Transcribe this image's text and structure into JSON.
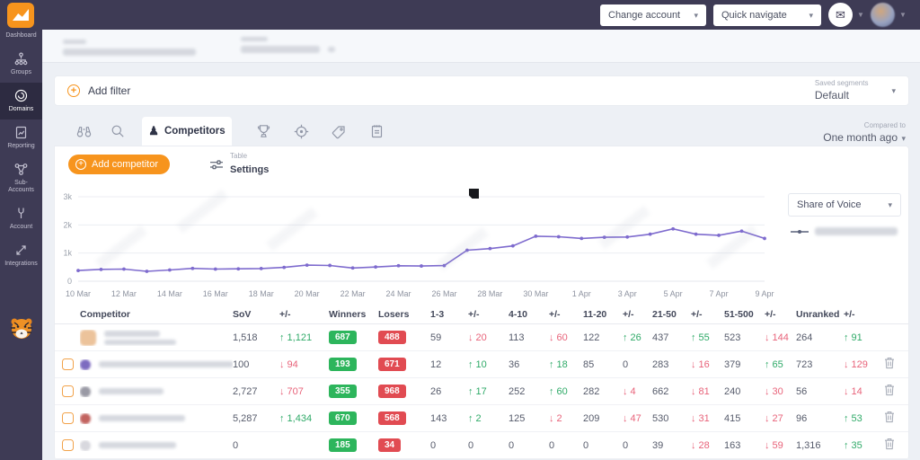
{
  "colors": {
    "topbar": "#3e3b55",
    "accent": "#f7941d",
    "chart_line": "#7e6bce",
    "up_green": "#2faa68",
    "down_red": "#e8637a",
    "badge_green": "#2db55c",
    "badge_red": "#e14b52"
  },
  "topbar": {
    "change_account": "Change account",
    "quick_navigate": "Quick navigate"
  },
  "sidebar": {
    "items": [
      {
        "label": "Dashboard"
      },
      {
        "label": "Groups"
      },
      {
        "label": "Domains"
      },
      {
        "label": "Reporting"
      },
      {
        "label": "Sub-Accounts"
      },
      {
        "label": "Account"
      },
      {
        "label": "Integrations"
      }
    ]
  },
  "filter_bar": {
    "add_filter": "Add filter",
    "saved_segments_label": "Saved segments",
    "saved_segments_value": "Default"
  },
  "tabs": {
    "competitors_label": "Competitors",
    "compared_to_label": "Compared to",
    "compared_to_value": "One month ago"
  },
  "toolbar": {
    "add_competitor_label": "Add competitor",
    "table_settings_top": "Table",
    "table_settings_label": "Settings"
  },
  "chart": {
    "metric_selector": "Share of Voice"
  },
  "chart_data": {
    "type": "line",
    "x_start": "10 Mar",
    "x_end": "9 Apr",
    "x_tick_labels": [
      "10 Mar",
      "12 Mar",
      "14 Mar",
      "16 Mar",
      "18 Mar",
      "20 Mar",
      "22 Mar",
      "24 Mar",
      "26 Mar",
      "28 Mar",
      "30 Mar",
      "1 Apr",
      "3 Apr",
      "5 Apr",
      "7 Apr",
      "9 Apr"
    ],
    "y_tick_labels": [
      "0",
      "1k",
      "2k",
      "3k"
    ],
    "y_tick_values": [
      0,
      1000,
      2000,
      3000
    ],
    "ylim": [
      0,
      3000
    ],
    "grid": true,
    "legend_position": "right",
    "series": [
      {
        "name": "Share of Voice",
        "color": "#7e6bce",
        "values": [
          380,
          420,
          430,
          350,
          400,
          455,
          430,
          440,
          450,
          490,
          570,
          560,
          470,
          505,
          550,
          540,
          555,
          1100,
          1160,
          1255,
          1600,
          1580,
          1520,
          1560,
          1570,
          1670,
          1860,
          1670,
          1630,
          1780,
          1518
        ]
      }
    ]
  },
  "table": {
    "columns": [
      "Competitor",
      "SoV",
      "+/-",
      "Winners",
      "Losers",
      "1-3",
      "+/-",
      "4-10",
      "+/-",
      "11-20",
      "+/-",
      "21-50",
      "+/-",
      "51-500",
      "+/-",
      "Unranked",
      "+/-"
    ],
    "rows": [
      {
        "has_checkbox": false,
        "favicon_color": "#ecc39b",
        "name_blur_widths": [
          62,
          80
        ],
        "sov": "1,518",
        "sov_chg": {
          "dir": "up",
          "v": "1,121"
        },
        "winners": "687",
        "losers": "488",
        "top3": "59",
        "top3_chg": {
          "dir": "down",
          "v": "20"
        },
        "r4_10": "113",
        "r4_10_chg": {
          "dir": "down",
          "v": "60"
        },
        "r11_20": "122",
        "r11_20_chg": {
          "dir": "up",
          "v": "26"
        },
        "r21_50": "437",
        "r21_50_chg": {
          "dir": "up",
          "v": "55"
        },
        "r51_500": "523",
        "r51_500_chg": {
          "dir": "down",
          "v": "144"
        },
        "unranked": "264",
        "unranked_chg": {
          "dir": "up",
          "v": "91"
        },
        "deletable": false
      },
      {
        "has_checkbox": true,
        "favicon_color": "#7d6bc0",
        "name_blur_widths": [
          150
        ],
        "sov": "100",
        "sov_chg": {
          "dir": "down",
          "v": "94"
        },
        "winners": "193",
        "losers": "671",
        "top3": "12",
        "top3_chg": {
          "dir": "up",
          "v": "10"
        },
        "r4_10": "36",
        "r4_10_chg": {
          "dir": "up",
          "v": "18"
        },
        "r11_20": "85",
        "r11_20_chg": {
          "v": "0"
        },
        "r21_50": "283",
        "r21_50_chg": {
          "dir": "down",
          "v": "16"
        },
        "r51_500": "379",
        "r51_500_chg": {
          "dir": "up",
          "v": "65"
        },
        "unranked": "723",
        "unranked_chg": {
          "dir": "down",
          "v": "129"
        },
        "deletable": true
      },
      {
        "has_checkbox": true,
        "favicon_color": "#9a9aa5",
        "name_blur_widths": [
          72
        ],
        "sov": "2,727",
        "sov_chg": {
          "dir": "down",
          "v": "707"
        },
        "winners": "355",
        "losers": "968",
        "top3": "26",
        "top3_chg": {
          "dir": "up",
          "v": "17"
        },
        "r4_10": "252",
        "r4_10_chg": {
          "dir": "up",
          "v": "60"
        },
        "r11_20": "282",
        "r11_20_chg": {
          "dir": "down",
          "v": "4"
        },
        "r21_50": "662",
        "r21_50_chg": {
          "dir": "down",
          "v": "81"
        },
        "r51_500": "240",
        "r51_500_chg": {
          "dir": "down",
          "v": "30"
        },
        "unranked": "56",
        "unranked_chg": {
          "dir": "down",
          "v": "14"
        },
        "deletable": true
      },
      {
        "has_checkbox": true,
        "favicon_color": "#c2635f",
        "name_blur_widths": [
          96
        ],
        "sov": "5,287",
        "sov_chg": {
          "dir": "up",
          "v": "1,434"
        },
        "winners": "670",
        "losers": "568",
        "top3": "143",
        "top3_chg": {
          "dir": "up",
          "v": "2"
        },
        "r4_10": "125",
        "r4_10_chg": {
          "dir": "down",
          "v": "2"
        },
        "r11_20": "209",
        "r11_20_chg": {
          "dir": "down",
          "v": "47"
        },
        "r21_50": "530",
        "r21_50_chg": {
          "dir": "down",
          "v": "31"
        },
        "r51_500": "415",
        "r51_500_chg": {
          "dir": "down",
          "v": "27"
        },
        "unranked": "96",
        "unranked_chg": {
          "dir": "up",
          "v": "53"
        },
        "deletable": true
      },
      {
        "has_checkbox": true,
        "favicon_color": "#d8d8de",
        "name_blur_widths": [
          86
        ],
        "sov": "0",
        "sov_chg": {
          "v": ""
        },
        "winners": "185",
        "losers": "34",
        "top3": "0",
        "top3_chg": {
          "v": "0"
        },
        "r4_10": "0",
        "r4_10_chg": {
          "v": "0"
        },
        "r11_20": "0",
        "r11_20_chg": {
          "v": "0"
        },
        "r21_50": "39",
        "r21_50_chg": {
          "dir": "down",
          "v": "28"
        },
        "r51_500": "163",
        "r51_500_chg": {
          "dir": "down",
          "v": "59"
        },
        "unranked": "1,316",
        "unranked_chg": {
          "dir": "up",
          "v": "35"
        },
        "deletable": true
      }
    ]
  }
}
